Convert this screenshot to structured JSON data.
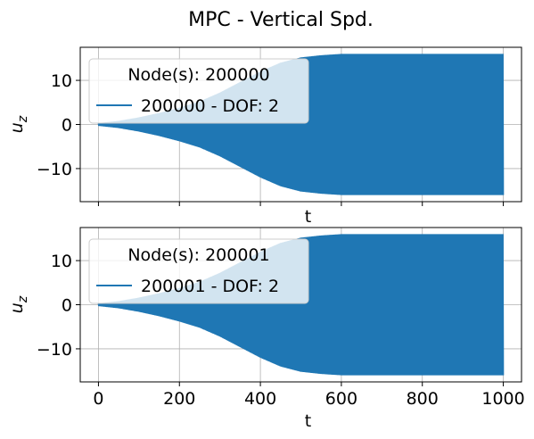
{
  "figure": {
    "title": "MPC - Vertical Spd."
  },
  "colors": {
    "series": "#1f77b4",
    "grid": "#b0b0b0",
    "axis": "#000000"
  },
  "chart_data": [
    {
      "type": "line",
      "panel": "top",
      "xlabel": "t",
      "ylabel_base": "u",
      "ylabel_sub": "z",
      "xlim": [
        -45,
        1045
      ],
      "ylim": [
        -17.5,
        17.5
      ],
      "xticks": [
        0,
        200,
        400,
        600,
        800,
        1000
      ],
      "xticklabels_shown": false,
      "yticks": [
        10,
        0,
        -10
      ],
      "yticklabels": [
        "10",
        "0",
        "−10"
      ],
      "grid": true,
      "legend": {
        "title": "Node(s): 200000",
        "position": "top-left",
        "entries": [
          "200000 - DOF: 2"
        ]
      },
      "series": [
        {
          "name": "200000 - DOF: 2",
          "description": "oscillation whose amplitude grows from ~0 to ~16",
          "envelope_t": [
            0,
            50,
            100,
            150,
            200,
            250,
            300,
            350,
            400,
            450,
            500,
            550,
            600,
            700,
            800,
            900,
            1000
          ],
          "envelope_amp": [
            0.3,
            0.8,
            1.6,
            2.6,
            3.8,
            5.2,
            7.2,
            9.6,
            12.0,
            14.0,
            15.2,
            15.7,
            16.0,
            16.0,
            16.0,
            16.0,
            16.0
          ]
        }
      ]
    },
    {
      "type": "line",
      "panel": "bottom",
      "xlabel": "t",
      "ylabel_base": "u",
      "ylabel_sub": "z",
      "xlim": [
        -45,
        1045
      ],
      "ylim": [
        -17.5,
        17.5
      ],
      "xticks": [
        0,
        200,
        400,
        600,
        800,
        1000
      ],
      "xticklabels": [
        "0",
        "200",
        "400",
        "600",
        "800",
        "1000"
      ],
      "yticks": [
        10,
        0,
        -10
      ],
      "yticklabels": [
        "10",
        "0",
        "−10"
      ],
      "grid": true,
      "legend": {
        "title": "Node(s): 200001",
        "position": "top-left",
        "entries": [
          "200001 - DOF: 2"
        ]
      },
      "series": [
        {
          "name": "200001 - DOF: 2",
          "description": "oscillation whose amplitude grows from ~0 to ~16",
          "envelope_t": [
            0,
            50,
            100,
            150,
            200,
            250,
            300,
            350,
            400,
            450,
            500,
            550,
            600,
            700,
            800,
            900,
            1000
          ],
          "envelope_amp": [
            0.3,
            0.8,
            1.6,
            2.6,
            3.8,
            5.2,
            7.2,
            9.6,
            12.0,
            14.0,
            15.2,
            15.7,
            16.0,
            16.0,
            16.0,
            16.0,
            16.0
          ]
        }
      ]
    }
  ]
}
